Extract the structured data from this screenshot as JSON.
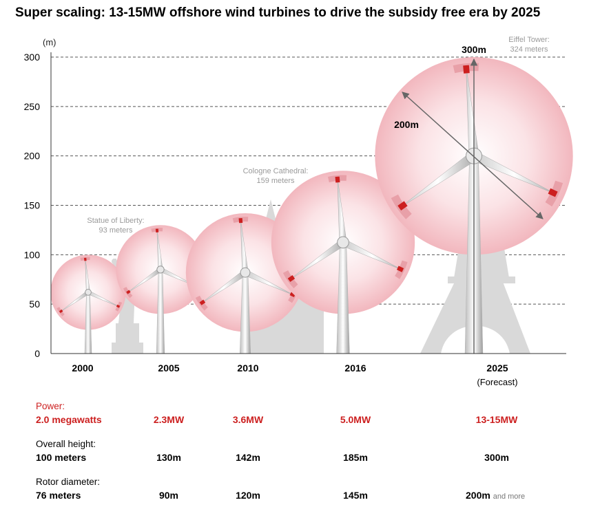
{
  "title": "Super scaling: 13-15MW offshore wind turbines to drive the subsidy free era by 2025",
  "colors": {
    "accent_red": "#cc1f1f",
    "landmark_gray": "#d9d9d9",
    "rotor_pink": "#f3b9bf"
  },
  "chart_data": {
    "type": "bar",
    "unit_label": "(m)",
    "ylim": [
      0,
      300
    ],
    "yticks": [
      "0",
      "50",
      "100",
      "150",
      "200",
      "250",
      "300"
    ],
    "grid": true,
    "categories": [
      "2000",
      "2005",
      "2010",
      "2016",
      "2025"
    ],
    "category_note": "(Forecast)",
    "series": [
      {
        "name": "Overall height",
        "values": [
          100,
          130,
          142,
          185,
          300
        ]
      },
      {
        "name": "Rotor diameter",
        "values": [
          76,
          90,
          120,
          145,
          200
        ]
      }
    ],
    "landmarks": [
      {
        "label": "Statue of Liberty:",
        "sub": "93 meters",
        "height": 93
      },
      {
        "label": "Cologne Cathedral:",
        "sub": "159 meters",
        "height": 159
      },
      {
        "label": "Eiffel Tower:",
        "sub": "324 meters",
        "height": 324
      }
    ],
    "annotations": {
      "height": "300m",
      "diameter": "200m"
    }
  },
  "table": {
    "power": {
      "label": "Power:",
      "values": [
        "2.0 megawatts",
        "2.3MW",
        "3.6MW",
        "5.0MW",
        "13-15MW"
      ]
    },
    "height": {
      "label": "Overall height:",
      "values": [
        "100 meters",
        "130m",
        "142m",
        "185m",
        "300m"
      ]
    },
    "rotor": {
      "label": "Rotor diameter:",
      "values": [
        "76 meters",
        "90m",
        "120m",
        "145m",
        "200m"
      ],
      "suffix": "and more"
    }
  }
}
